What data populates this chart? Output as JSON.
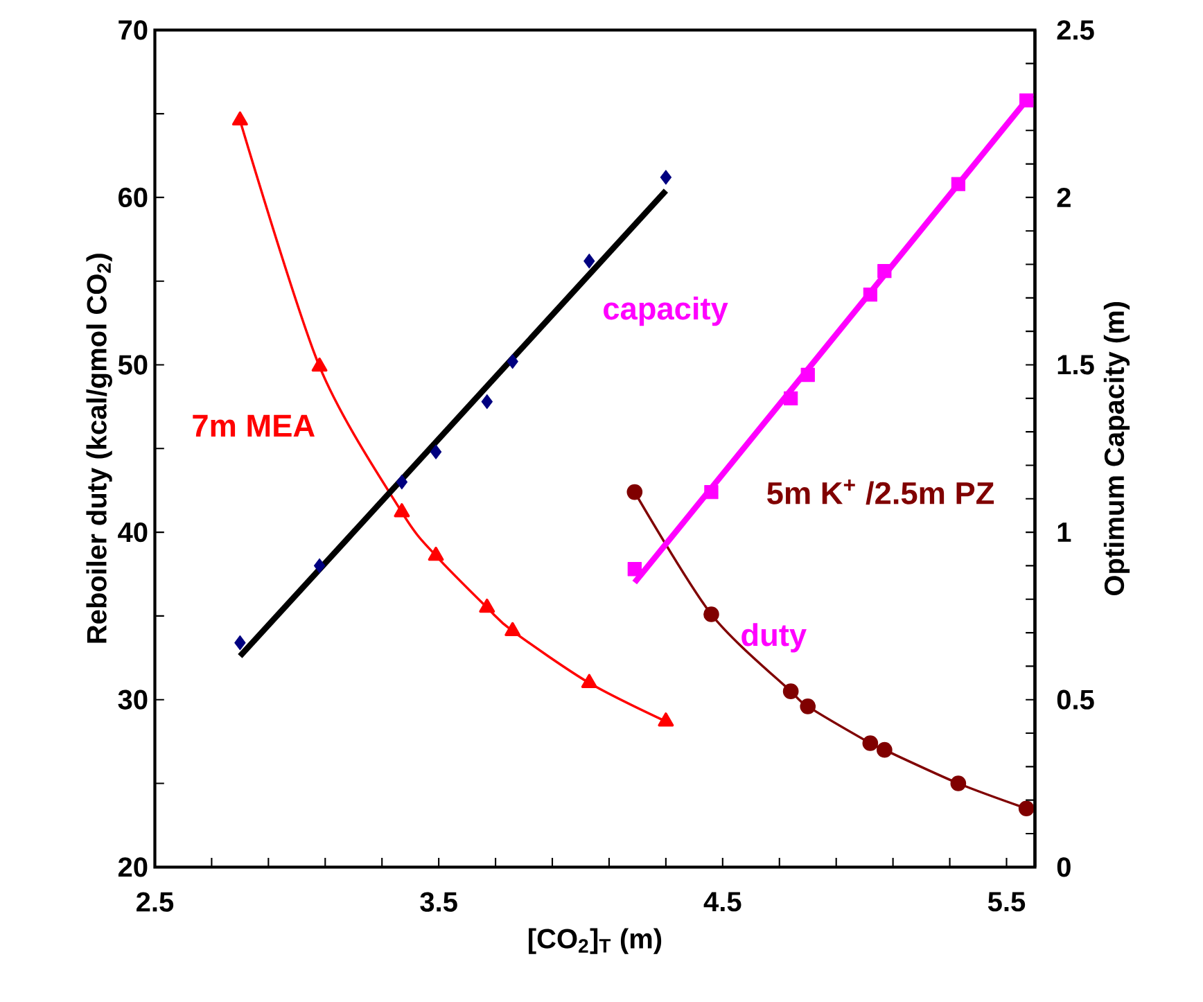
{
  "chart_data": {
    "type": "line",
    "xlabel": "[CO$_{2}$]$_{T}$  (m)",
    "ylabel": "Reboiler duty (kcal/gmol CO$_{2}$)",
    "y2label": "Optimum Capacity (m)",
    "xlim": [
      2.5,
      5.6
    ],
    "xticks": [
      2.5,
      {
        "value": 2.7,
        "label": null
      },
      {
        "value": 2.9,
        "label": null
      },
      {
        "value": 3.1,
        "label": null
      },
      {
        "value": 3.3,
        "label": null
      },
      3.5,
      {
        "value": 3.7,
        "label": null
      },
      {
        "value": 3.9,
        "label": null
      },
      {
        "value": 4.1,
        "label": null
      },
      {
        "value": 4.3,
        "label": null
      },
      4.5,
      {
        "value": 4.7,
        "label": null
      },
      {
        "value": 4.9,
        "label": null
      },
      {
        "value": 5.1,
        "label": null
      },
      {
        "value": 5.3,
        "label": null
      },
      5.5
    ],
    "ylim": [
      20,
      70
    ],
    "yticks": [
      20,
      {
        "value": 25,
        "label": null
      },
      30,
      {
        "value": 35,
        "label": null
      },
      40,
      {
        "value": 45,
        "label": null
      },
      50,
      {
        "value": 55,
        "label": null
      },
      60,
      {
        "value": 65,
        "label": null
      },
      70
    ],
    "y2lim": [
      0,
      2.5
    ],
    "y2ticks": [
      0,
      {
        "value": 0.1,
        "label": null
      },
      {
        "value": 0.2,
        "label": null
      },
      {
        "value": 0.3,
        "label": null
      },
      {
        "value": 0.4,
        "label": null
      },
      0.5,
      {
        "value": 0.6,
        "label": null
      },
      {
        "value": 0.7,
        "label": null
      },
      {
        "value": 0.8,
        "label": null
      },
      {
        "value": 0.9,
        "label": null
      },
      1,
      {
        "value": 1.1,
        "label": null
      },
      {
        "value": 1.2,
        "label": null
      },
      {
        "value": 1.3,
        "label": null
      },
      {
        "value": 1.4,
        "label": null
      },
      1.5,
      {
        "value": 1.6,
        "label": null
      },
      {
        "value": 1.7,
        "label": null
      },
      {
        "value": 1.8,
        "label": null
      },
      {
        "value": 1.9,
        "label": null
      },
      2,
      {
        "value": 2.1,
        "label": null
      },
      {
        "value": 2.2,
        "label": null
      },
      {
        "value": 2.3,
        "label": null
      },
      {
        "value": 2.4,
        "label": null
      },
      2.5
    ],
    "grid": false,
    "line_style": "solid",
    "series": [
      {
        "name": "7m MEA",
        "color": "#ff0000",
        "marker": "triangle",
        "x": [
          2.8,
          3.08,
          3.37,
          3.49,
          3.67,
          3.76,
          4.03,
          4.3
        ],
        "values": [
          64.6,
          49.9,
          41.2,
          38.6,
          35.5,
          34.1,
          31.0,
          28.7
        ]
      },
      {
        "type": "scatter",
        "axis": "y2",
        "color": "#000080",
        "marker": "diamond",
        "x": [
          2.8,
          3.08,
          3.37,
          3.49,
          3.67,
          3.76,
          4.03,
          4.3
        ],
        "values": [
          0.67,
          0.9,
          1.15,
          1.24,
          1.39,
          1.51,
          1.81,
          2.06
        ]
      },
      {
        "axis": "y2",
        "color": "#000000",
        "marker": "none",
        "x": [
          2.8,
          4.3
        ],
        "values": [
          0.63,
          2.02
        ]
      },
      {
        "name": "5m K$^{+}$ /2.5m PZ",
        "color": "#800000",
        "marker": "circle",
        "x": [
          4.19,
          4.46,
          4.74,
          4.8,
          5.02,
          5.07,
          5.33,
          5.57
        ],
        "values": [
          42.4,
          35.1,
          30.5,
          29.6,
          27.4,
          27.0,
          25.0,
          23.5
        ]
      },
      {
        "type": "scatter",
        "axis": "y2",
        "color": "#ff00ff",
        "marker": "square",
        "x": [
          4.19,
          4.46,
          4.74,
          4.8,
          5.02,
          5.07,
          5.33,
          5.57
        ],
        "values": [
          0.89,
          1.12,
          1.4,
          1.47,
          1.71,
          1.78,
          2.04,
          2.29
        ]
      },
      {
        "axis": "y2",
        "color": "#ff00ff",
        "marker": "none",
        "x": [
          4.19,
          5.57
        ],
        "values": [
          0.85,
          2.29
        ]
      }
    ],
    "annotations": [
      "capacity",
      "duty"
    ]
  }
}
